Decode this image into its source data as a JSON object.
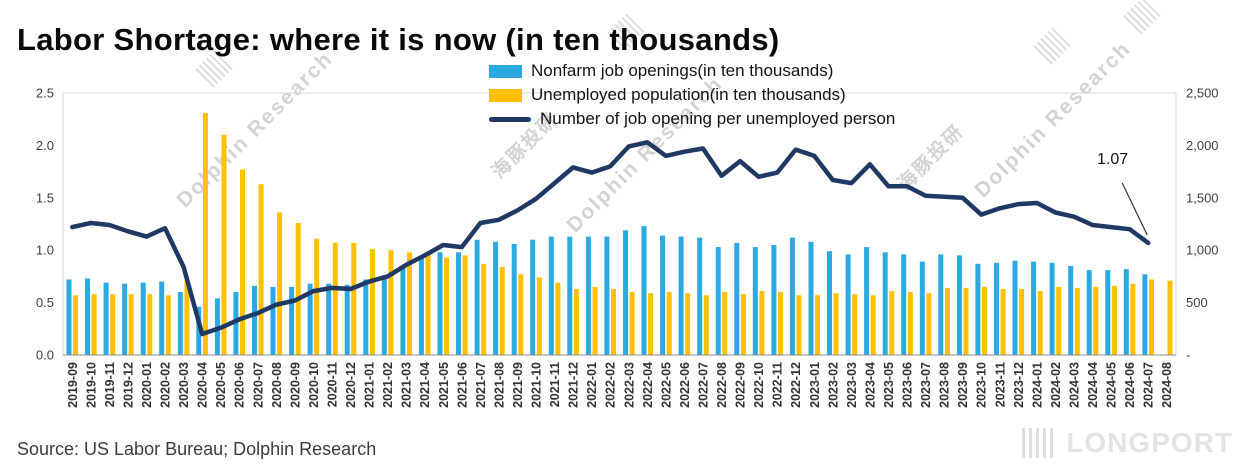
{
  "source": "Source: US Labor Bureau; Dolphin Research",
  "watermarks": {
    "dolphin_en": "Dolphin Research",
    "dolphin_cn": "海豚投研",
    "longport": "LONGPORT"
  },
  "chart_data": {
    "type": "combo",
    "title": "Labor Shortage:  where it is now (in ten thousands)",
    "legend_position": "top-center",
    "grid": "off",
    "categories": [
      "2019-09",
      "2019-10",
      "2019-11",
      "2019-12",
      "2020-01",
      "2020-02",
      "2020-03",
      "2020-04",
      "2020-05",
      "2020-06",
      "2020-07",
      "2020-08",
      "2020-09",
      "2020-10",
      "2020-11",
      "2020-12",
      "2021-01",
      "2021-02",
      "2021-03",
      "2021-04",
      "2021-05",
      "2021-06",
      "2021-07",
      "2021-08",
      "2021-09",
      "2021-10",
      "2021-11",
      "2021-12",
      "2022-01",
      "2022-02",
      "2022-03",
      "2022-04",
      "2022-05",
      "2022-06",
      "2022-07",
      "2022-08",
      "2022-09",
      "2022-10",
      "2022-11",
      "2022-12",
      "2023-01",
      "2023-02",
      "2023-03",
      "2023-04",
      "2023-05",
      "2023-06",
      "2023-07",
      "2023-08",
      "2023-09",
      "2023-10",
      "2023-11",
      "2023-12",
      "2024-01",
      "2024-02",
      "2024-03",
      "2024-04",
      "2024-05",
      "2024-06",
      "2024-07",
      "2024-08"
    ],
    "series": [
      {
        "name": "Nonfarm job openings(in ten thousands)",
        "type": "bar",
        "axis": "right",
        "color": "#2BA9E1",
        "values": [
          720,
          730,
          690,
          680,
          690,
          700,
          600,
          460,
          540,
          600,
          660,
          650,
          650,
          680,
          680,
          670,
          720,
          750,
          840,
          930,
          980,
          980,
          1100,
          1080,
          1060,
          1100,
          1130,
          1130,
          1130,
          1130,
          1190,
          1230,
          1140,
          1130,
          1120,
          1030,
          1070,
          1030,
          1050,
          1120,
          1080,
          990,
          960,
          1030,
          980,
          960,
          890,
          960,
          950,
          870,
          880,
          900,
          890,
          880,
          850,
          810,
          810,
          820,
          770,
          null
        ]
      },
      {
        "name": "Unemployed population(in ten thousands)",
        "type": "bar",
        "axis": "right",
        "color": "#FFC000",
        "values": [
          570,
          580,
          580,
          580,
          580,
          570,
          710,
          2310,
          2100,
          1770,
          1630,
          1360,
          1260,
          1110,
          1070,
          1070,
          1010,
          1000,
          980,
          980,
          930,
          950,
          870,
          840,
          770,
          740,
          690,
          630,
          650,
          630,
          600,
          590,
          600,
          590,
          570,
          600,
          580,
          610,
          600,
          570,
          570,
          590,
          580,
          570,
          610,
          600,
          590,
          640,
          640,
          650,
          630,
          630,
          610,
          650,
          640,
          650,
          660,
          680,
          720,
          710
        ]
      },
      {
        "name": "Number of job opening per unemployed person",
        "type": "line",
        "axis": "left",
        "color": "#1F3864",
        "values": [
          1.22,
          1.26,
          1.24,
          1.18,
          1.13,
          1.21,
          0.84,
          0.2,
          0.26,
          0.34,
          0.4,
          0.48,
          0.52,
          0.61,
          0.64,
          0.63,
          0.7,
          0.75,
          0.86,
          0.95,
          1.05,
          1.03,
          1.26,
          1.29,
          1.38,
          1.49,
          1.64,
          1.79,
          1.74,
          1.8,
          1.99,
          2.03,
          1.9,
          1.94,
          1.97,
          1.71,
          1.85,
          1.7,
          1.74,
          1.96,
          1.9,
          1.67,
          1.64,
          1.82,
          1.61,
          1.61,
          1.52,
          1.51,
          1.5,
          1.34,
          1.4,
          1.44,
          1.45,
          1.36,
          1.32,
          1.24,
          1.22,
          1.2,
          1.07,
          null
        ]
      }
    ],
    "left_axis": {
      "min": 0,
      "max": 2.5,
      "ticks": [
        "0.0",
        "0.5",
        "1.0",
        "1.5",
        "2.0",
        "2.5"
      ]
    },
    "right_axis": {
      "min": 0,
      "max": 2500,
      "ticks": [
        "-",
        "500",
        "1,000",
        "1,500",
        "2,000",
        "2,500"
      ]
    },
    "annotation": {
      "label": "1.07",
      "target_category": "2024-07"
    }
  }
}
